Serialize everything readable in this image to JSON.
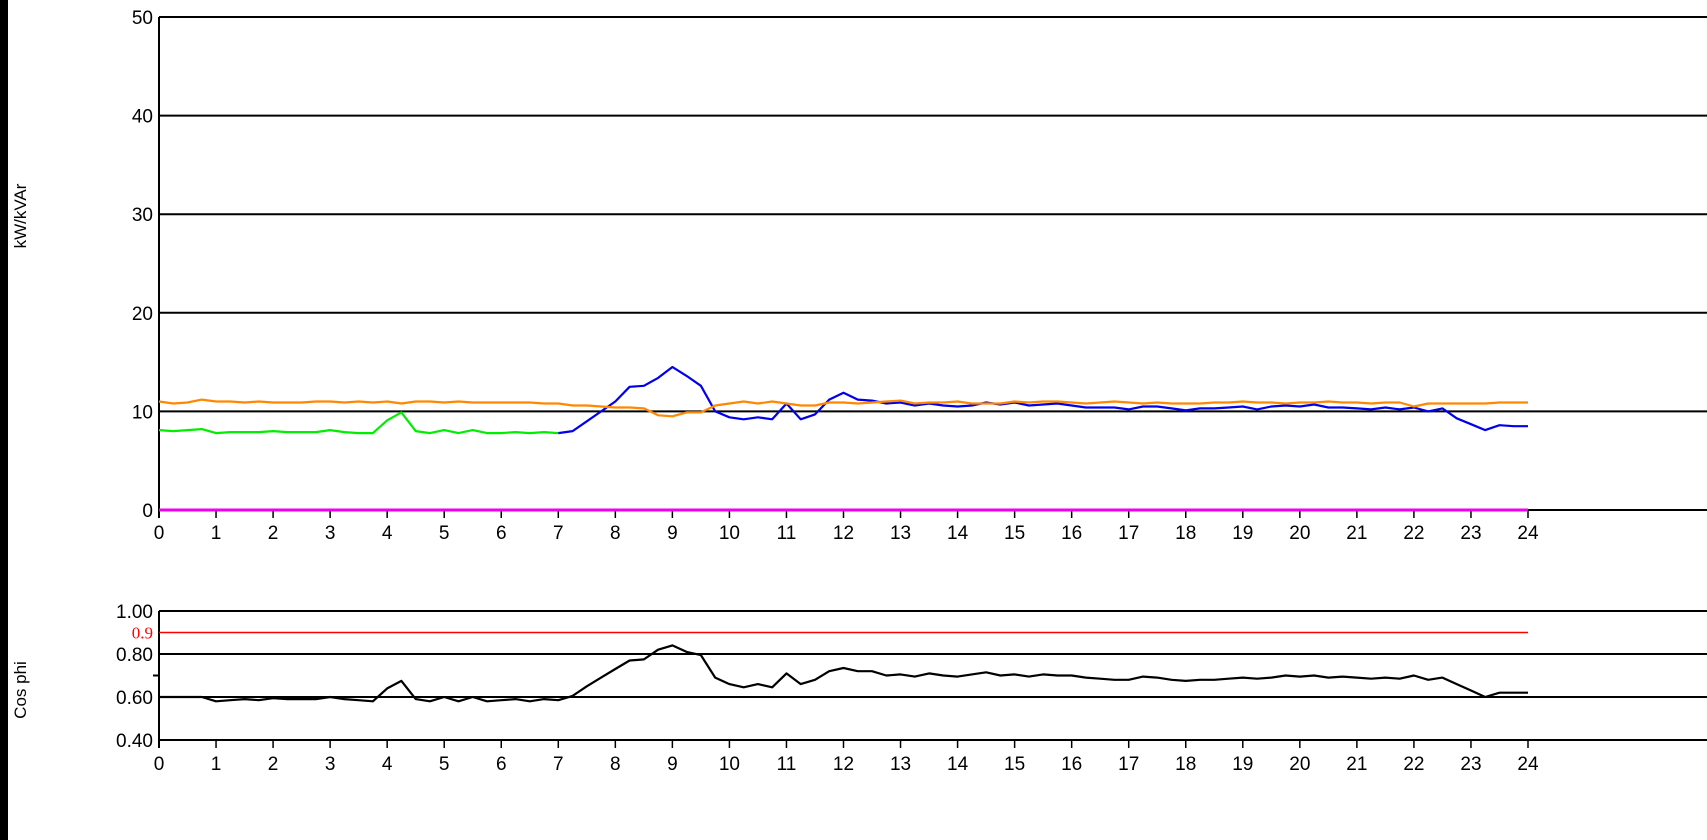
{
  "chart_data": [
    {
      "type": "line",
      "ylabel": "kW/kVAr",
      "xlabel": "",
      "xlim": [
        0,
        24
      ],
      "ylim": [
        0,
        50
      ],
      "x_ticks": [
        0,
        1,
        2,
        3,
        4,
        5,
        6,
        7,
        8,
        9,
        10,
        11,
        12,
        13,
        14,
        15,
        16,
        17,
        18,
        19,
        20,
        21,
        22,
        23,
        24
      ],
      "y_ticks": [
        0,
        10,
        20,
        30,
        40,
        50
      ],
      "grid": "horizontal",
      "colors": {
        "green": "#00ee00",
        "blue": "#0000ee",
        "orange": "#ff8800",
        "magenta": "#ee00ee"
      },
      "series": [
        {
          "color": "#00ee00",
          "x": [
            0,
            0.25,
            0.5,
            0.75,
            1,
            1.25,
            1.5,
            1.75,
            2,
            2.25,
            2.5,
            2.75,
            3,
            3.25,
            3.5,
            3.75,
            4,
            4.25,
            4.5,
            4.75,
            5,
            5.25,
            5.5,
            5.75,
            6,
            6.25,
            6.5,
            6.75,
            7
          ],
          "y": [
            8.1,
            8.0,
            8.1,
            8.2,
            7.8,
            7.9,
            7.9,
            7.9,
            8.0,
            7.9,
            7.9,
            7.9,
            8.1,
            7.9,
            7.8,
            7.8,
            9.1,
            9.9,
            8.0,
            7.8,
            8.1,
            7.8,
            8.1,
            7.8,
            7.8,
            7.9,
            7.8,
            7.9,
            7.8
          ]
        },
        {
          "color": "#0000ee",
          "x": [
            7,
            7.25,
            7.5,
            7.75,
            8,
            8.25,
            8.5,
            8.75,
            9,
            9.25,
            9.5,
            9.75,
            10,
            10.25,
            10.5,
            10.75,
            11,
            11.25,
            11.5,
            11.75,
            12,
            12.25,
            12.5,
            12.75,
            13,
            13.25,
            13.5,
            13.75,
            14,
            14.25,
            14.5,
            14.75,
            15,
            15.25,
            15.5,
            15.75,
            16,
            16.25,
            16.5,
            16.75,
            17,
            17.25,
            17.5,
            17.75,
            18,
            18.25,
            18.5,
            18.75,
            19,
            19.25,
            19.5,
            19.75,
            20,
            20.25,
            20.5,
            20.75,
            21,
            21.25,
            21.5,
            21.75,
            22,
            22.25,
            22.5,
            22.75,
            23,
            23.25,
            23.5,
            23.75,
            24
          ],
          "y": [
            7.8,
            8.0,
            9.0,
            10.0,
            11.0,
            12.5,
            12.6,
            13.4,
            14.5,
            13.6,
            12.6,
            10.0,
            9.4,
            9.2,
            9.4,
            9.2,
            10.8,
            9.2,
            9.7,
            11.2,
            11.9,
            11.2,
            11.1,
            10.8,
            10.9,
            10.6,
            10.8,
            10.6,
            10.5,
            10.6,
            10.9,
            10.7,
            10.9,
            10.6,
            10.7,
            10.8,
            10.6,
            10.4,
            10.4,
            10.4,
            10.2,
            10.5,
            10.5,
            10.3,
            10.1,
            10.3,
            10.3,
            10.4,
            10.5,
            10.2,
            10.5,
            10.6,
            10.5,
            10.7,
            10.4,
            10.4,
            10.3,
            10.2,
            10.4,
            10.2,
            10.4,
            10.0,
            10.3,
            9.3,
            8.7,
            8.1,
            8.6,
            8.5,
            8.5
          ]
        },
        {
          "color": "#ff8800",
          "x": [
            0,
            0.25,
            0.5,
            0.75,
            1,
            1.25,
            1.5,
            1.75,
            2,
            2.25,
            2.5,
            2.75,
            3,
            3.25,
            3.5,
            3.75,
            4,
            4.25,
            4.5,
            4.75,
            5,
            5.25,
            5.5,
            5.75,
            6,
            6.25,
            6.5,
            6.75,
            7,
            7.25,
            7.5,
            7.75,
            8,
            8.25,
            8.5,
            8.75,
            9,
            9.25,
            9.5,
            9.75,
            10,
            10.25,
            10.5,
            10.75,
            11,
            11.25,
            11.5,
            11.75,
            12,
            12.25,
            12.5,
            12.75,
            13,
            13.25,
            13.5,
            13.75,
            14,
            14.25,
            14.5,
            14.75,
            15,
            15.25,
            15.5,
            15.75,
            16,
            16.25,
            16.5,
            16.75,
            17,
            17.25,
            17.5,
            17.75,
            18,
            18.25,
            18.5,
            18.75,
            19,
            19.25,
            19.5,
            19.75,
            20,
            20.25,
            20.5,
            20.75,
            21,
            21.25,
            21.5,
            21.75,
            22,
            22.25,
            22.5,
            22.75,
            23,
            23.25,
            23.5,
            23.75,
            24
          ],
          "y": [
            11.0,
            10.8,
            10.9,
            11.2,
            11.0,
            11.0,
            10.9,
            11.0,
            10.9,
            10.9,
            10.9,
            11.0,
            11.0,
            10.9,
            11.0,
            10.9,
            11.0,
            10.8,
            11.0,
            11.0,
            10.9,
            11.0,
            10.9,
            10.9,
            10.9,
            10.9,
            10.9,
            10.8,
            10.8,
            10.6,
            10.6,
            10.5,
            10.4,
            10.4,
            10.3,
            9.6,
            9.5,
            9.9,
            9.9,
            10.6,
            10.8,
            11.0,
            10.8,
            11.0,
            10.8,
            10.6,
            10.6,
            10.9,
            10.9,
            10.8,
            10.9,
            11.0,
            11.1,
            10.8,
            10.9,
            10.9,
            11.0,
            10.8,
            10.8,
            10.8,
            11.0,
            10.9,
            11.0,
            11.0,
            10.9,
            10.8,
            10.9,
            11.0,
            10.9,
            10.8,
            10.9,
            10.8,
            10.8,
            10.8,
            10.9,
            10.9,
            11.0,
            10.9,
            10.9,
            10.8,
            10.9,
            10.9,
            11.0,
            10.9,
            10.9,
            10.8,
            10.9,
            10.9,
            10.5,
            10.8,
            10.8,
            10.8,
            10.8,
            10.8,
            10.9,
            10.9,
            10.9
          ]
        },
        {
          "color": "#ee00ee",
          "x": [
            0,
            24
          ],
          "y": [
            0,
            0
          ]
        }
      ]
    },
    {
      "type": "line",
      "ylabel": "Cos phi",
      "xlabel": "",
      "xlim": [
        0,
        24
      ],
      "ylim": [
        0.4,
        1.0
      ],
      "x_ticks": [
        0,
        1,
        2,
        3,
        4,
        5,
        6,
        7,
        8,
        9,
        10,
        11,
        12,
        13,
        14,
        15,
        16,
        17,
        18,
        19,
        20,
        21,
        22,
        23,
        24
      ],
      "y_ticks": [
        "0.40",
        "0.60",
        "0.80",
        "1.00"
      ],
      "y_tick_values": [
        0.4,
        0.6,
        0.8,
        1.0
      ],
      "grid": "horizontal",
      "reference_line": {
        "value": 0.9,
        "label": "0.9",
        "color": "#ff0000"
      },
      "series": [
        {
          "color": "#000000",
          "x": [
            0,
            0.25,
            0.5,
            0.75,
            1,
            1.25,
            1.5,
            1.75,
            2,
            2.25,
            2.5,
            2.75,
            3,
            3.25,
            3.5,
            3.75,
            4,
            4.25,
            4.5,
            4.75,
            5,
            5.25,
            5.5,
            5.75,
            6,
            6.25,
            6.5,
            6.75,
            7,
            7.25,
            7.5,
            7.75,
            8,
            8.25,
            8.5,
            8.75,
            9,
            9.25,
            9.5,
            9.75,
            10,
            10.25,
            10.5,
            10.75,
            11,
            11.25,
            11.5,
            11.75,
            12,
            12.25,
            12.5,
            12.75,
            13,
            13.25,
            13.5,
            13.75,
            14,
            14.25,
            14.5,
            14.75,
            15,
            15.25,
            15.5,
            15.75,
            16,
            16.25,
            16.5,
            16.75,
            17,
            17.25,
            17.5,
            17.75,
            18,
            18.25,
            18.5,
            18.75,
            19,
            19.25,
            19.5,
            19.75,
            20,
            20.25,
            20.5,
            20.75,
            21,
            21.25,
            21.5,
            21.75,
            22,
            22.25,
            22.5,
            22.75,
            23,
            23.25,
            23.5,
            23.75,
            24
          ],
          "y": [
            0.6,
            0.6,
            0.6,
            0.6,
            0.58,
            0.585,
            0.59,
            0.585,
            0.595,
            0.59,
            0.59,
            0.59,
            0.6,
            0.59,
            0.585,
            0.58,
            0.64,
            0.675,
            0.59,
            0.58,
            0.6,
            0.58,
            0.6,
            0.58,
            0.585,
            0.59,
            0.58,
            0.59,
            0.585,
            0.605,
            0.65,
            0.69,
            0.73,
            0.77,
            0.775,
            0.82,
            0.84,
            0.81,
            0.795,
            0.69,
            0.66,
            0.645,
            0.66,
            0.645,
            0.71,
            0.66,
            0.68,
            0.72,
            0.735,
            0.72,
            0.72,
            0.7,
            0.705,
            0.695,
            0.71,
            0.7,
            0.695,
            0.705,
            0.715,
            0.7,
            0.705,
            0.695,
            0.705,
            0.7,
            0.7,
            0.69,
            0.685,
            0.68,
            0.68,
            0.695,
            0.69,
            0.68,
            0.675,
            0.68,
            0.68,
            0.685,
            0.69,
            0.685,
            0.69,
            0.7,
            0.695,
            0.7,
            0.69,
            0.695,
            0.69,
            0.685,
            0.69,
            0.685,
            0.7,
            0.68,
            0.69,
            0.66,
            0.63,
            0.6,
            0.62,
            0.62,
            0.62
          ]
        }
      ]
    }
  ]
}
